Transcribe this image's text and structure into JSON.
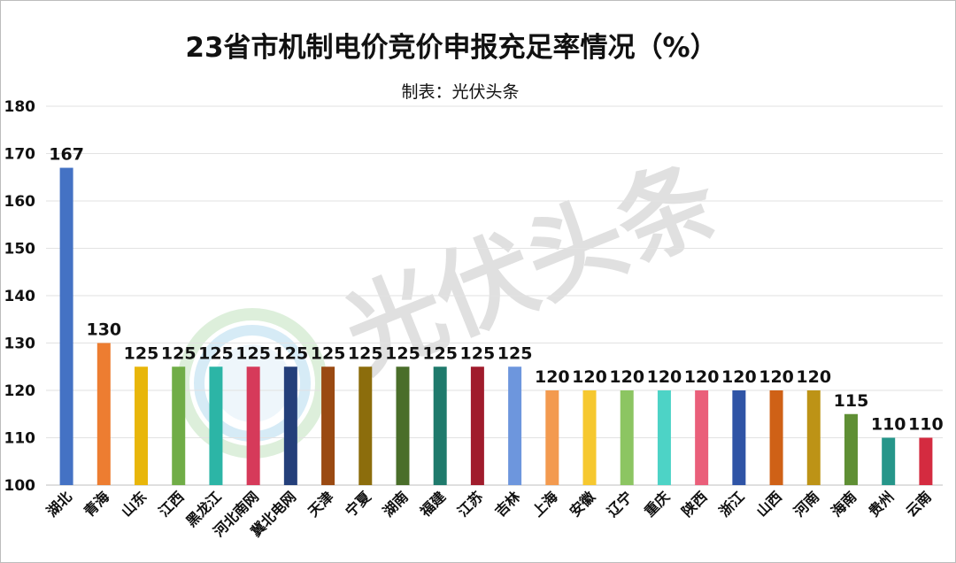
{
  "chart_data": {
    "type": "bar",
    "title": "23省市机制电价竞价申报充足率情况（%）",
    "subtitle": "制表：光伏头条",
    "watermark": "光伏头条",
    "ylim": [
      100,
      180
    ],
    "yticks": [
      100,
      110,
      120,
      130,
      140,
      150,
      160,
      170,
      180
    ],
    "grid": true,
    "categories": [
      "湖北",
      "青海",
      "山东",
      "江西",
      "黑龙江",
      "河北南网",
      "冀北电网",
      "天津",
      "宁夏",
      "湖南",
      "福建",
      "江苏",
      "吉林",
      "上海",
      "安徽",
      "辽宁",
      "重庆",
      "陕西",
      "浙江",
      "山西",
      "河南",
      "海南",
      "贵州",
      "云南"
    ],
    "values": [
      167,
      130,
      125,
      125,
      125,
      125,
      125,
      125,
      125,
      125,
      125,
      125,
      125,
      120,
      120,
      120,
      120,
      120,
      120,
      120,
      120,
      115,
      110,
      110
    ],
    "colors": [
      "#4472c4",
      "#ed7d31",
      "#e8b60a",
      "#70ad47",
      "#2cb5a6",
      "#d63a5a",
      "#243f7a",
      "#9a4a12",
      "#8c6d0c",
      "#4a6e2a",
      "#1f7a6c",
      "#a01c2c",
      "#6d96dd",
      "#f39a4f",
      "#f6c82f",
      "#8cc562",
      "#4dd3c6",
      "#ea5f7a",
      "#2f54a6",
      "#cf6116",
      "#bd9316",
      "#5f8f34",
      "#26968a",
      "#d42b40"
    ]
  }
}
